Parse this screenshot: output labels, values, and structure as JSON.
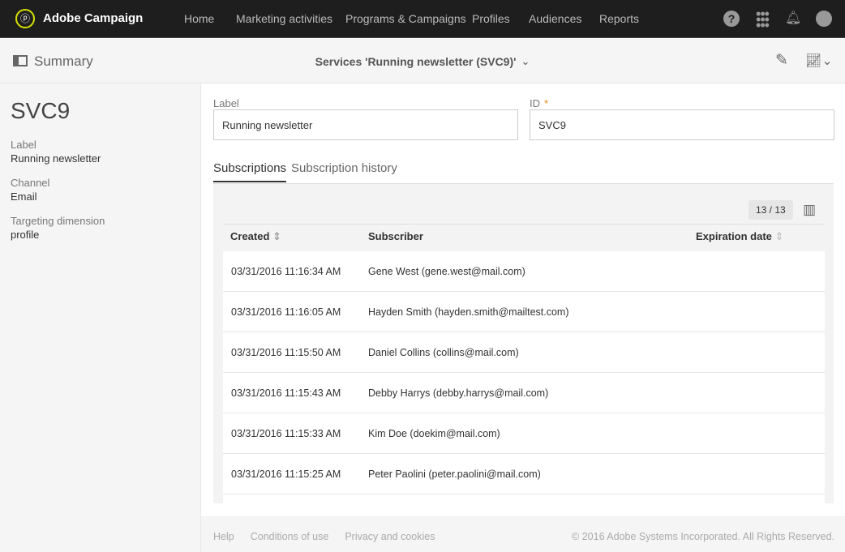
{
  "header": {
    "brand": "Adobe Campaign",
    "nav": [
      "Home",
      "Marketing activities",
      "Programs & Campaigns",
      "Profiles",
      "Audiences",
      "Reports"
    ]
  },
  "subheader": {
    "summary": "Summary",
    "title": "Services 'Running newsletter (SVC9)'"
  },
  "sidebar": {
    "id": "SVC9",
    "fields": [
      {
        "label": "Label",
        "value": "Running newsletter"
      },
      {
        "label": "Channel",
        "value": "Email"
      },
      {
        "label": "Targeting dimension",
        "value": "profile"
      }
    ]
  },
  "form": {
    "label_label": "Label",
    "label_value": "Running newsletter",
    "id_label": "ID",
    "id_required": "*",
    "id_value": "SVC9"
  },
  "tabs": [
    "Subscriptions",
    "Subscription history"
  ],
  "table": {
    "count": "13 / 13",
    "columns": [
      "Created",
      "Subscriber",
      "Expiration date"
    ],
    "rows": [
      {
        "created": "03/31/2016 11:16:34 AM",
        "subscriber": "Gene West (gene.west@mail.com)"
      },
      {
        "created": "03/31/2016 11:16:05 AM",
        "subscriber": "Hayden Smith (hayden.smith@mailtest.com)"
      },
      {
        "created": "03/31/2016 11:15:50 AM",
        "subscriber": "Daniel Collins (collins@mail.com)"
      },
      {
        "created": "03/31/2016 11:15:43 AM",
        "subscriber": "Debby Harrys (debby.harrys@mail.com)"
      },
      {
        "created": "03/31/2016 11:15:33 AM",
        "subscriber": "Kim Doe (doekim@mail.com)"
      },
      {
        "created": "03/31/2016 11:15:25 AM",
        "subscriber": "Peter Paolini (peter.paolini@mail.com)"
      }
    ]
  },
  "footer": {
    "links": [
      "Help",
      "Conditions of use",
      "Privacy and cookies"
    ],
    "copyright": "© 2016 Adobe Systems Incorporated. All Rights Reserved."
  },
  "colors": {
    "topbar": "#1e1e1e",
    "logo_ring": "#d7e000",
    "required": "#e68619"
  }
}
